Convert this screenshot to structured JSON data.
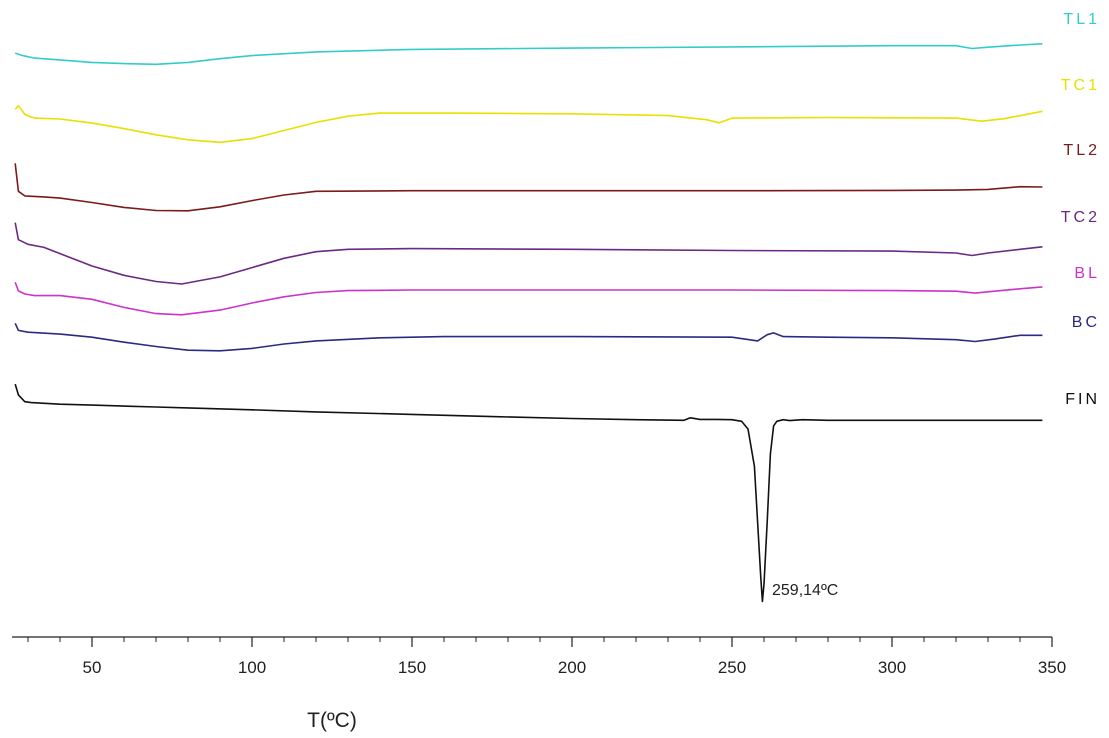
{
  "chart_data": {
    "type": "line",
    "title": "",
    "xlabel": "T(ºC)",
    "ylabel": "",
    "xlim": [
      25,
      350
    ],
    "x_ticks": [
      50,
      100,
      150,
      200,
      250,
      300,
      350
    ],
    "x_tick_labels": [
      "50",
      "100",
      "150",
      "200",
      "250",
      "300",
      "350"
    ],
    "grid": false,
    "legend": "inline-right",
    "y_axis_shown": false,
    "series": [
      {
        "name": "TL1",
        "color": "#33cccc",
        "points": [
          [
            26,
            -1.0
          ],
          [
            28,
            -1.7
          ],
          [
            32,
            -2.6
          ],
          [
            40,
            -3.2
          ],
          [
            50,
            -4.0
          ],
          [
            60,
            -4.4
          ],
          [
            70,
            -4.6
          ],
          [
            80,
            -4.0
          ],
          [
            90,
            -2.8
          ],
          [
            100,
            -1.8
          ],
          [
            120,
            -0.6
          ],
          [
            150,
            0.2
          ],
          [
            200,
            0.6
          ],
          [
            250,
            1.0
          ],
          [
            300,
            1.4
          ],
          [
            320,
            1.4
          ],
          [
            325,
            0.5
          ],
          [
            330,
            0.9
          ],
          [
            340,
            1.6
          ],
          [
            347,
            2.0
          ]
        ]
      },
      {
        "name": "TC1",
        "color": "#e8e000",
        "points": [
          [
            26,
            1.8
          ],
          [
            27,
            3.0
          ],
          [
            29,
            0.2
          ],
          [
            32,
            -1.0
          ],
          [
            40,
            -1.3
          ],
          [
            50,
            -2.6
          ],
          [
            60,
            -4.4
          ],
          [
            70,
            -6.4
          ],
          [
            80,
            -8.0
          ],
          [
            90,
            -8.8
          ],
          [
            100,
            -7.6
          ],
          [
            110,
            -5.0
          ],
          [
            120,
            -2.4
          ],
          [
            130,
            -0.4
          ],
          [
            140,
            0.6
          ],
          [
            160,
            0.6
          ],
          [
            200,
            0.4
          ],
          [
            230,
            -0.2
          ],
          [
            242,
            -1.5
          ],
          [
            246,
            -2.5
          ],
          [
            250,
            -1.0
          ],
          [
            280,
            -0.8
          ],
          [
            320,
            -1.0
          ],
          [
            328,
            -2.0
          ],
          [
            335,
            -1.2
          ],
          [
            347,
            1.2
          ]
        ]
      },
      {
        "name": "TL2",
        "color": "#7a1a1a",
        "points": [
          [
            26,
            6
          ],
          [
            27,
            -3
          ],
          [
            29,
            -4.5
          ],
          [
            35,
            -4.8
          ],
          [
            40,
            -5.2
          ],
          [
            50,
            -6.6
          ],
          [
            60,
            -8.2
          ],
          [
            70,
            -9.2
          ],
          [
            80,
            -9.3
          ],
          [
            90,
            -8.0
          ],
          [
            100,
            -6.0
          ],
          [
            110,
            -4.2
          ],
          [
            120,
            -3.0
          ],
          [
            150,
            -2.8
          ],
          [
            200,
            -2.8
          ],
          [
            250,
            -2.8
          ],
          [
            300,
            -2.7
          ],
          [
            320,
            -2.6
          ],
          [
            330,
            -2.4
          ],
          [
            340,
            -1.5
          ],
          [
            347,
            -1.6
          ]
        ]
      },
      {
        "name": "TC2",
        "color": "#6a2a82",
        "points": [
          [
            26,
            4
          ],
          [
            27,
            -1.5
          ],
          [
            30,
            -3
          ],
          [
            35,
            -4
          ],
          [
            40,
            -6
          ],
          [
            50,
            -10
          ],
          [
            60,
            -13
          ],
          [
            70,
            -15
          ],
          [
            78,
            -15.8
          ],
          [
            90,
            -13.5
          ],
          [
            100,
            -10.5
          ],
          [
            110,
            -7.5
          ],
          [
            120,
            -5.4
          ],
          [
            130,
            -4.6
          ],
          [
            150,
            -4.4
          ],
          [
            200,
            -4.6
          ],
          [
            250,
            -5.0
          ],
          [
            300,
            -5.2
          ],
          [
            320,
            -5.8
          ],
          [
            325,
            -6.6
          ],
          [
            330,
            -5.8
          ],
          [
            340,
            -4.6
          ],
          [
            347,
            -3.8
          ]
        ]
      },
      {
        "name": "BL",
        "color": "#cc33cc",
        "points": [
          [
            26,
            2.5
          ],
          [
            27,
            -0.3
          ],
          [
            29,
            -1.3
          ],
          [
            32,
            -1.8
          ],
          [
            40,
            -1.8
          ],
          [
            50,
            -3.0
          ],
          [
            60,
            -5.6
          ],
          [
            70,
            -7.6
          ],
          [
            78,
            -8.0
          ],
          [
            90,
            -6.5
          ],
          [
            100,
            -4.2
          ],
          [
            110,
            -2.2
          ],
          [
            120,
            -0.8
          ],
          [
            130,
            -0.2
          ],
          [
            150,
            0.0
          ],
          [
            200,
            0.0
          ],
          [
            250,
            0.0
          ],
          [
            300,
            -0.2
          ],
          [
            320,
            -0.4
          ],
          [
            326,
            -1.0
          ],
          [
            332,
            -0.4
          ],
          [
            340,
            0.4
          ],
          [
            347,
            1.0
          ]
        ]
      },
      {
        "name": "BC",
        "color": "#2a2a80",
        "points": [
          [
            26,
            2.5
          ],
          [
            27,
            0.2
          ],
          [
            30,
            -0.4
          ],
          [
            40,
            -1.0
          ],
          [
            50,
            -2.0
          ],
          [
            60,
            -3.6
          ],
          [
            70,
            -5.0
          ],
          [
            80,
            -6.2
          ],
          [
            90,
            -6.4
          ],
          [
            100,
            -5.6
          ],
          [
            110,
            -4.2
          ],
          [
            120,
            -3.2
          ],
          [
            140,
            -2.2
          ],
          [
            160,
            -1.8
          ],
          [
            200,
            -1.8
          ],
          [
            250,
            -2.0
          ],
          [
            258,
            -3.2
          ],
          [
            261,
            -1.2
          ],
          [
            263,
            -0.6
          ],
          [
            266,
            -1.8
          ],
          [
            280,
            -2.0
          ],
          [
            300,
            -2.2
          ],
          [
            320,
            -2.8
          ],
          [
            326,
            -3.4
          ],
          [
            332,
            -2.6
          ],
          [
            340,
            -1.4
          ],
          [
            347,
            -1.4
          ]
        ]
      },
      {
        "name": "FIN",
        "color": "#111111",
        "points": [
          [
            26,
            4.5
          ],
          [
            27,
            1
          ],
          [
            29,
            -1.2
          ],
          [
            31,
            -1.5
          ],
          [
            40,
            -2
          ],
          [
            50,
            -2.3
          ],
          [
            60,
            -2.6
          ],
          [
            70,
            -2.9
          ],
          [
            80,
            -3.2
          ],
          [
            100,
            -3.8
          ],
          [
            120,
            -4.5
          ],
          [
            150,
            -5.3
          ],
          [
            175,
            -6.0
          ],
          [
            200,
            -6.6
          ],
          [
            220,
            -7.0
          ],
          [
            235,
            -7.2
          ],
          [
            237,
            -6.4
          ],
          [
            240,
            -6.9
          ],
          [
            245,
            -6.9
          ],
          [
            250,
            -7.0
          ],
          [
            253,
            -7.5
          ],
          [
            255,
            -10.0
          ],
          [
            257,
            -22.0
          ],
          [
            258,
            -40.0
          ],
          [
            259,
            -58.0
          ],
          [
            259.5,
            -65.6
          ],
          [
            260,
            -60.0
          ],
          [
            261,
            -40.0
          ],
          [
            262,
            -18.0
          ],
          [
            263,
            -9.0
          ],
          [
            264,
            -7.5
          ],
          [
            266,
            -7.0
          ],
          [
            268,
            -7.3
          ],
          [
            272,
            -7.0
          ],
          [
            280,
            -7.2
          ],
          [
            300,
            -7.2
          ],
          [
            320,
            -7.2
          ],
          [
            335,
            -7.2
          ],
          [
            347,
            -7.2
          ]
        ]
      }
    ],
    "annotations": [
      {
        "text": "259,14ºC",
        "x": 260
      }
    ]
  }
}
